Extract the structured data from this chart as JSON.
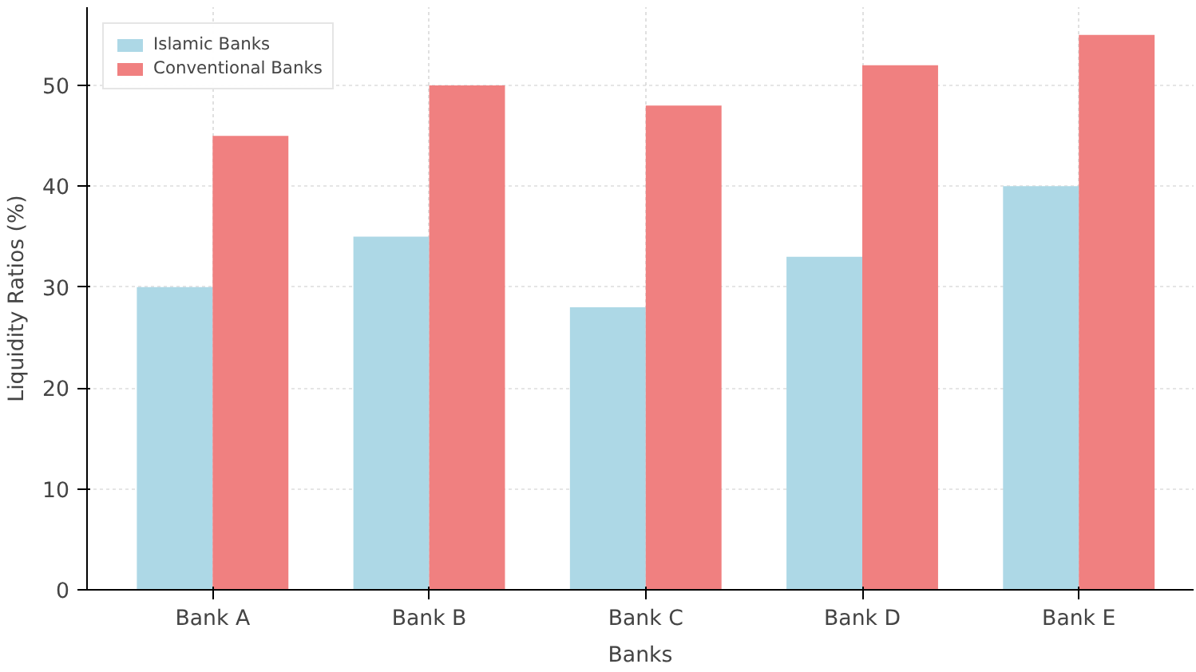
{
  "chart_data": {
    "type": "bar",
    "xlabel": "Banks",
    "ylabel": "Liquidity Ratios (%)",
    "categories": [
      "Bank A",
      "Bank B",
      "Bank C",
      "Bank D",
      "Bank E"
    ],
    "series": [
      {
        "name": "Islamic Banks",
        "color": "#add8e6",
        "values": [
          30,
          35,
          28,
          33,
          40
        ]
      },
      {
        "name": "Conventional Banks",
        "color": "#f08080",
        "values": [
          45,
          50,
          48,
          52,
          55
        ]
      }
    ],
    "ylim": [
      0,
      57.75
    ],
    "yticks": [
      0,
      10,
      20,
      30,
      40,
      50
    ],
    "grid": true,
    "legend": "top left"
  }
}
